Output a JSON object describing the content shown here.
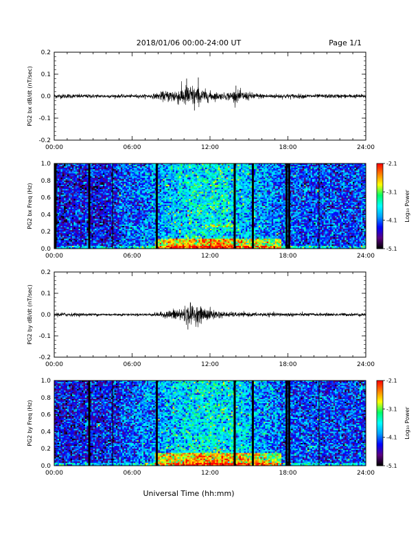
{
  "header": {
    "title": "2018/01/06  00:00-24:00 UT",
    "page": "Page 1/1"
  },
  "xaxis": {
    "label": "Universal Time (hh:mm)",
    "ticks": [
      "00:00",
      "06:00",
      "12:00",
      "18:00",
      "24:00"
    ],
    "range_hours": [
      0,
      24
    ]
  },
  "colorbar": {
    "label": "Log₁₀ Power",
    "ticks": [
      "-2.1",
      "-3.1",
      "-4.1",
      "-5.1"
    ],
    "range": [
      -5.1,
      -2.1
    ],
    "colormap": [
      "#000000",
      "#5a0080",
      "#0000ff",
      "#00a0ff",
      "#00ffff",
      "#00ff66",
      "#ffff00",
      "#ff8000",
      "#ff0000"
    ]
  },
  "chart_data": [
    {
      "type": "line",
      "panel": "bx-derivative",
      "ylabel": "PG2 bx dB/dt (nT/sec)",
      "ylim": [
        -0.2,
        0.2
      ],
      "yticks": [
        "0.2",
        "0.1",
        "0.0",
        "-0.1",
        "-0.2"
      ],
      "x_unit": "hours UT",
      "envelope": {
        "x": [
          0,
          2,
          4,
          6,
          7.5,
          8.5,
          9.5,
          10.5,
          11,
          12,
          13,
          14,
          15,
          16,
          17,
          18,
          20,
          22,
          24
        ],
        "amplitude": [
          0.012,
          0.01,
          0.009,
          0.008,
          0.01,
          0.025,
          0.04,
          0.06,
          0.045,
          0.025,
          0.015,
          0.03,
          0.02,
          0.012,
          0.012,
          0.012,
          0.01,
          0.01,
          0.01
        ]
      },
      "spikes": [
        {
          "x": 10.2,
          "y": 0.08
        },
        {
          "x": 11.1,
          "y": 0.085
        },
        {
          "x": 14.0,
          "y": 0.048
        },
        {
          "x": 10.8,
          "y": -0.065
        }
      ]
    },
    {
      "type": "heatmap",
      "panel": "bx-spectrogram",
      "ylabel": "PG2 bx Freq (Hz)",
      "ylim": [
        0.0,
        1.0
      ],
      "yticks": [
        "1.0",
        "0.8",
        "0.6",
        "0.4",
        "0.2",
        "0.0"
      ],
      "data_gaps_hours": [
        0.1,
        2.7,
        7.9,
        13.9,
        15.3,
        17.9,
        18.1
      ],
      "thin_gaps_hours": [
        4.5,
        20.4
      ],
      "enhanced_band": {
        "x_range": [
          7.8,
          17.5
        ],
        "freq_range": [
          0.0,
          0.12
        ]
      },
      "secondary_band": {
        "x_range": [
          12.0,
          14.0
        ],
        "freq": 0.27
      }
    },
    {
      "type": "line",
      "panel": "by-derivative",
      "ylabel": "PG2 by dB/dt (nT/sec)",
      "ylim": [
        -0.2,
        0.2
      ],
      "yticks": [
        "0.2",
        "0.1",
        "0.0",
        "-0.1",
        "-0.2"
      ],
      "x_unit": "hours UT",
      "envelope": {
        "x": [
          0,
          2,
          4,
          6,
          7.5,
          8.5,
          9.5,
          10.5,
          11,
          12,
          13,
          14,
          15,
          16,
          17,
          18,
          20,
          22,
          24
        ],
        "amplitude": [
          0.012,
          0.008,
          0.007,
          0.006,
          0.008,
          0.015,
          0.035,
          0.05,
          0.045,
          0.03,
          0.015,
          0.012,
          0.01,
          0.01,
          0.01,
          0.01,
          0.008,
          0.008,
          0.008
        ]
      },
      "spikes": [
        {
          "x": 10.5,
          "y": 0.055
        },
        {
          "x": 10.3,
          "y": -0.07
        }
      ]
    },
    {
      "type": "heatmap",
      "panel": "by-spectrogram",
      "ylabel": "PG2 by Freq (Hz)",
      "ylim": [
        0.0,
        1.0
      ],
      "yticks": [
        "1.0",
        "0.8",
        "0.6",
        "0.4",
        "0.2",
        "0.0"
      ],
      "data_gaps_hours": [
        2.7,
        7.9,
        13.9,
        15.3,
        17.9,
        18.1
      ],
      "thin_gaps_hours": [
        4.5,
        20.4
      ],
      "enhanced_band": {
        "x_range": [
          7.8,
          17.5
        ],
        "freq_range": [
          0.0,
          0.15
        ]
      },
      "secondary_band": {
        "x_range": [
          19.5,
          20.2
        ],
        "freq": 0.22
      }
    }
  ]
}
